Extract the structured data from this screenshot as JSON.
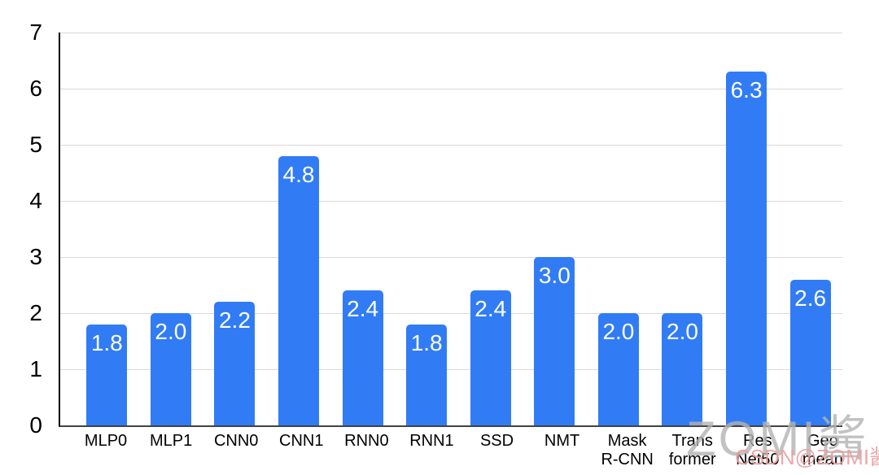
{
  "chart_data": {
    "type": "bar",
    "title": "",
    "xlabel": "",
    "ylabel": "",
    "categories": [
      "MLP0",
      "MLP1",
      "CNN0",
      "CNN1",
      "RNN0",
      "RNN1",
      "SSD",
      "NMT",
      "Mask\nR-CNN",
      "Trans\nformer",
      "Res\nNet50",
      "Geo\nmean"
    ],
    "values": [
      1.8,
      2.0,
      2.2,
      4.8,
      2.4,
      1.8,
      2.4,
      3.0,
      2.0,
      2.0,
      6.3,
      2.6
    ],
    "value_labels": [
      "1.8",
      "2.0",
      "2.2",
      "4.8",
      "2.4",
      "1.8",
      "2.4",
      "3.0",
      "2.0",
      "2.0",
      "6.3",
      "2.6"
    ],
    "ylim": [
      0,
      7
    ],
    "yticks": [
      0,
      1,
      2,
      3,
      4,
      5,
      6,
      7
    ],
    "grid": true,
    "legend": "none",
    "bar_color": "#317cf5",
    "value_label_color": "#ffffff",
    "gridline_color": "#d9d9d9",
    "axis_text_color": "#000000"
  },
  "watermark": {
    "large_text": "ZOMI酱",
    "small_text": "CSDN@ZOMI酱",
    "large_color": "#b3b3b3",
    "small_color": "#ec9f9f"
  }
}
